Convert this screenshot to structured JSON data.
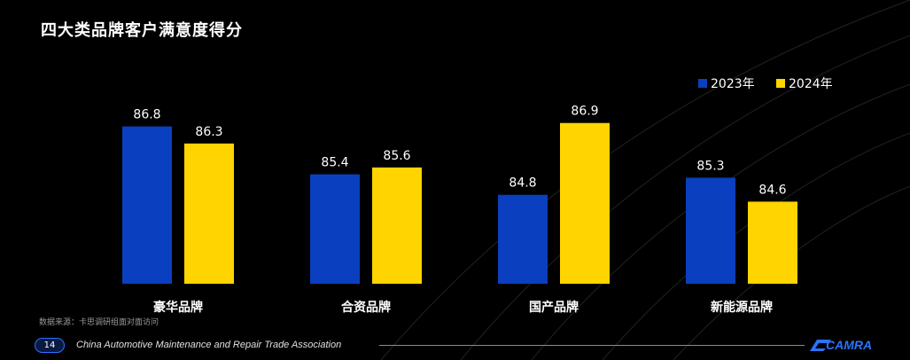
{
  "page": {
    "title": "四大类品牌客户满意度得分",
    "source_note": "数据来源：卡思调研组面对面访问",
    "page_number": "14",
    "association": "China Automotive Maintenance and Repair Trade Association",
    "logo_text": "CAMRA"
  },
  "colors": {
    "background": "#000000",
    "series_2023": "#0a3fbf",
    "series_2024": "#ffd400",
    "accent": "#2a73ff"
  },
  "chart_data": {
    "type": "bar",
    "title": "四大类品牌客户满意度得分",
    "categories": [
      "豪华品牌",
      "合资品牌",
      "国产品牌",
      "新能源品牌"
    ],
    "series": [
      {
        "name": "2023年",
        "values": [
          86.8,
          85.4,
          84.8,
          85.3
        ]
      },
      {
        "name": "2024年",
        "values": [
          86.3,
          85.6,
          86.9,
          84.6
        ]
      }
    ],
    "ylim": [
      82.2,
      87.8
    ],
    "grid": false,
    "legend_position": "top-right",
    "xlabel": "",
    "ylabel": ""
  }
}
